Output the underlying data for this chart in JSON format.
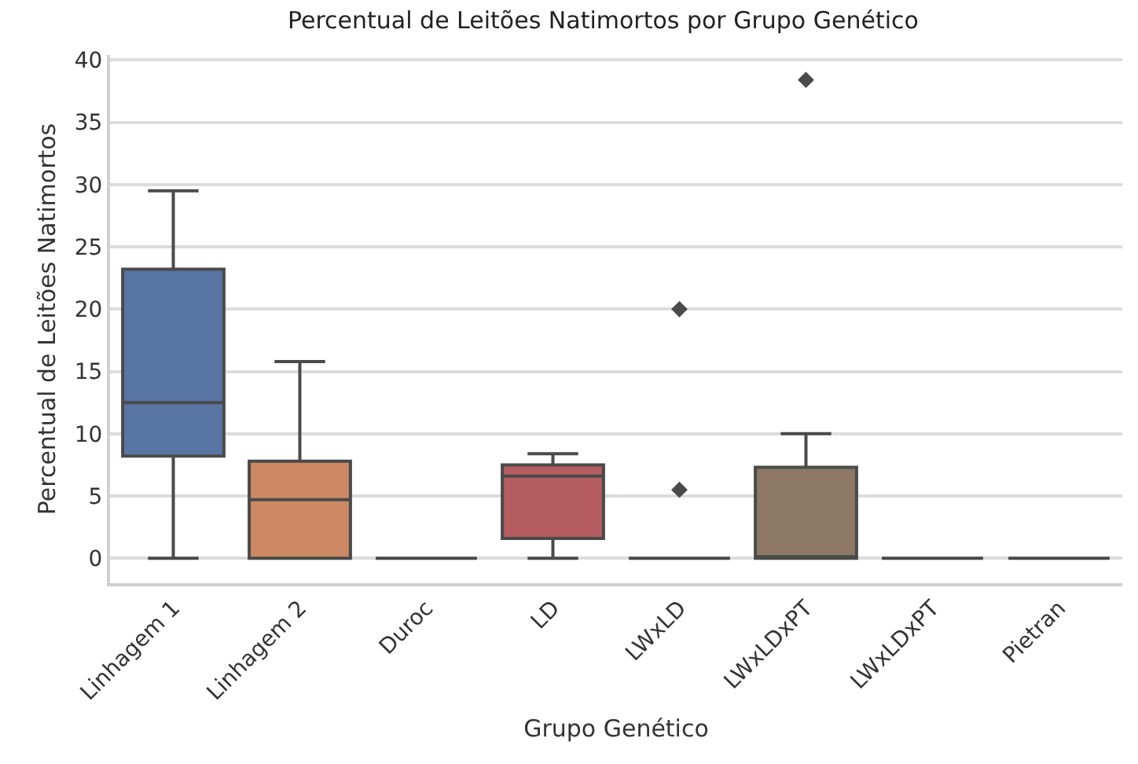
{
  "chart_data": {
    "type": "box",
    "title": "Percentual de Leitões Natimortos por Grupo Genético",
    "xlabel": "Grupo Genético",
    "ylabel": "Percentual de Leitões Natimortos",
    "categories": [
      "Linhagem 1",
      "Linhagem 2",
      "Duroc",
      "LD",
      "LWxLD",
      "LWxLDxPT",
      "LWxLDxPT",
      "Pietran"
    ],
    "colors": [
      "#5975a4",
      "#cc8963",
      null,
      "#b55d60",
      null,
      "#8d7866",
      null,
      null
    ],
    "boxes": [
      {
        "low": 0,
        "q1": 8.2,
        "median": 12.5,
        "q3": 23.2,
        "high": 29.5
      },
      {
        "low": 0,
        "q1": 0,
        "median": 4.7,
        "q3": 7.8,
        "high": 15.8
      },
      {
        "low": 0,
        "q1": 0,
        "median": 0,
        "q3": 0,
        "high": 0
      },
      {
        "low": 0,
        "q1": 1.6,
        "median": 6.6,
        "q3": 7.5,
        "high": 8.4
      },
      {
        "low": 0,
        "q1": 0,
        "median": 0,
        "q3": 0,
        "high": 0,
        "outliers": [
          5.5,
          20
        ]
      },
      {
        "low": 0,
        "q1": 0,
        "median": 0,
        "q3": 7.3,
        "high": 10,
        "outliers": [
          38.4
        ]
      },
      {
        "low": 0,
        "q1": 0,
        "median": 0,
        "q3": 0,
        "high": 0
      },
      {
        "low": 0,
        "q1": 0,
        "median": 0,
        "q3": 0,
        "high": 0
      }
    ],
    "ylim": [
      -2,
      40.4
    ],
    "yticks": [
      0,
      5,
      10,
      15,
      20,
      25,
      30,
      35,
      40
    ],
    "grid": "y",
    "marker": "diamond"
  }
}
